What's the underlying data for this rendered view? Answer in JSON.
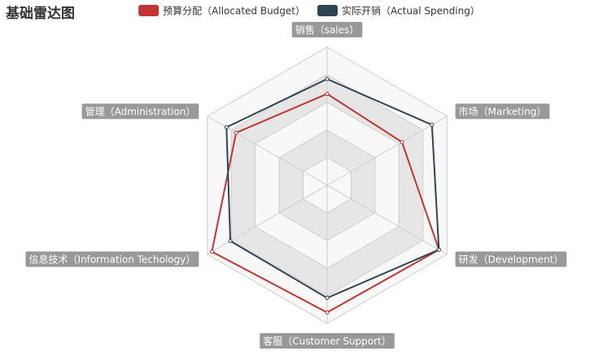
{
  "chart_data": {
    "type": "radar",
    "title": "基础雷达图",
    "legend_placement": "top-center",
    "indicators": [
      {
        "name": "销售（sales）",
        "max": 6500
      },
      {
        "name": "市场（Marketing）",
        "max": 16000
      },
      {
        "name": "研发（Development）",
        "max": 30000
      },
      {
        "name": "客服（Customer Support）",
        "max": 38000
      },
      {
        "name": "信息技术（Information Techology）",
        "max": 52000
      },
      {
        "name": "管理（Administration）",
        "max": 25000
      }
    ],
    "series": [
      {
        "name": "预算分配（Allocated Budget）",
        "color": "#c23531",
        "values": [
          4300,
          10000,
          28000,
          35000,
          50000,
          19000
        ]
      },
      {
        "name": "实际开销（Actual Spending）",
        "color": "#2f4554",
        "values": [
          5000,
          14000,
          28000,
          31000,
          42000,
          21000
        ]
      }
    ],
    "grid": {
      "split_number": 5,
      "split_area_colors": [
        "#f8f8f8",
        "#e6e6e6"
      ],
      "line_color": "#cccccc"
    },
    "indicator_label_bg": "#999999",
    "indicator_label_color": "#ffffff"
  }
}
